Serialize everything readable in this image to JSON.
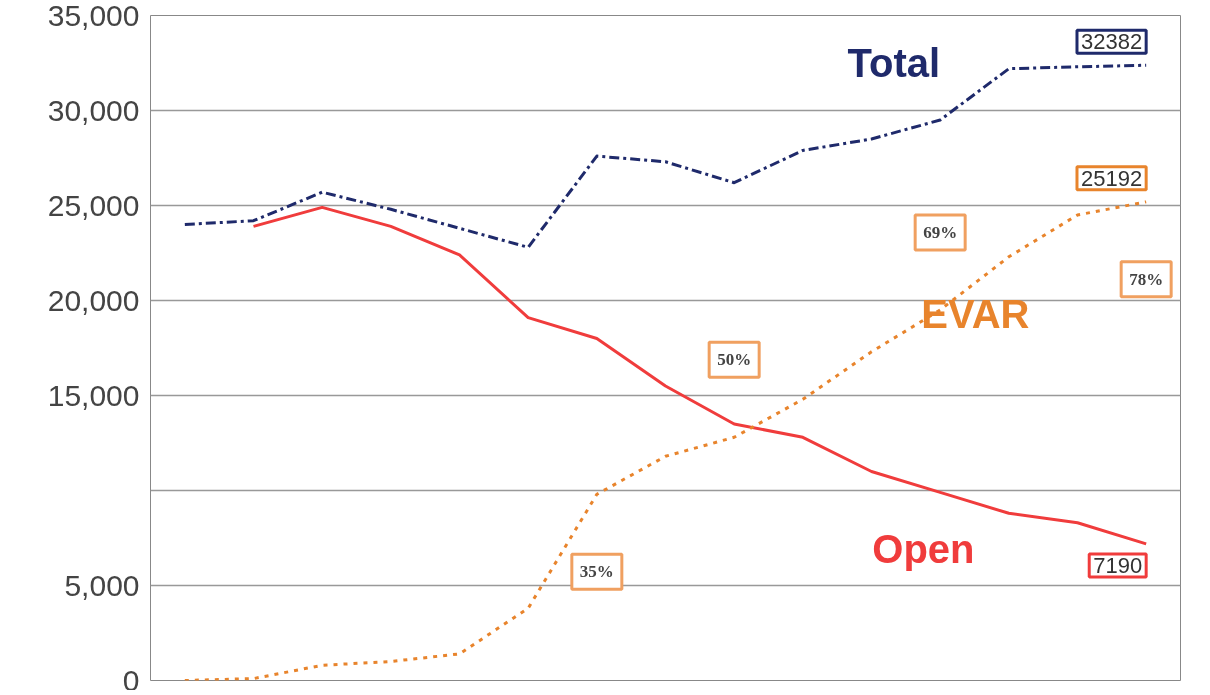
{
  "chart_data": {
    "type": "line",
    "categories": [
      null,
      null,
      null,
      null,
      null,
      null,
      null,
      null,
      null,
      null,
      null,
      null,
      null,
      null,
      null
    ],
    "series": [
      {
        "name": "Total",
        "color": "#1f2a6b",
        "line_style": "dashed",
        "values": [
          24000,
          24200,
          25700,
          24800,
          23800,
          22800,
          27600,
          27300,
          26200,
          27900,
          28500,
          29500,
          32200,
          32300,
          32382
        ],
        "value_labels": [
          null,
          null,
          null,
          null,
          null,
          null,
          null,
          null,
          null,
          null,
          null,
          null,
          null,
          null,
          "32382"
        ]
      },
      {
        "name": "EVAR",
        "color": "#e8842c",
        "line_style": "dotted",
        "values": [
          0,
          100,
          800,
          1000,
          1400,
          3800,
          9800,
          11800,
          12800,
          14800,
          17300,
          19500,
          22300,
          24500,
          25192
        ],
        "value_labels": [
          null,
          null,
          null,
          null,
          null,
          null,
          null,
          null,
          null,
          null,
          null,
          null,
          null,
          null,
          "25192"
        ]
      },
      {
        "name": "Open",
        "color": "#f03c3c",
        "line_style": "solid",
        "values": [
          null,
          23900,
          24900,
          23900,
          22400,
          19100,
          18000,
          15500,
          13500,
          12800,
          11000,
          9900,
          8800,
          8300,
          7190
        ],
        "value_labels": [
          null,
          null,
          null,
          null,
          null,
          null,
          null,
          null,
          null,
          null,
          null,
          null,
          null,
          null,
          "7190"
        ]
      }
    ],
    "annotations": [
      "35%",
      "50%",
      "69%",
      "78%"
    ],
    "ylim": [
      0,
      35000
    ],
    "yticks": [
      0,
      {
        "value": 5000,
        "label": "5,000"
      },
      {
        "value": 10000,
        "label": null
      },
      {
        "value": 15000,
        "label": "15,000"
      },
      {
        "value": 20000,
        "label": "20,000"
      },
      {
        "value": 25000,
        "label": "25,000"
      },
      {
        "value": 30000,
        "label": "30,000"
      },
      {
        "value": 35000,
        "label": "35,000"
      }
    ],
    "grid": "y",
    "tick_labels": "y",
    "marker": "none"
  }
}
